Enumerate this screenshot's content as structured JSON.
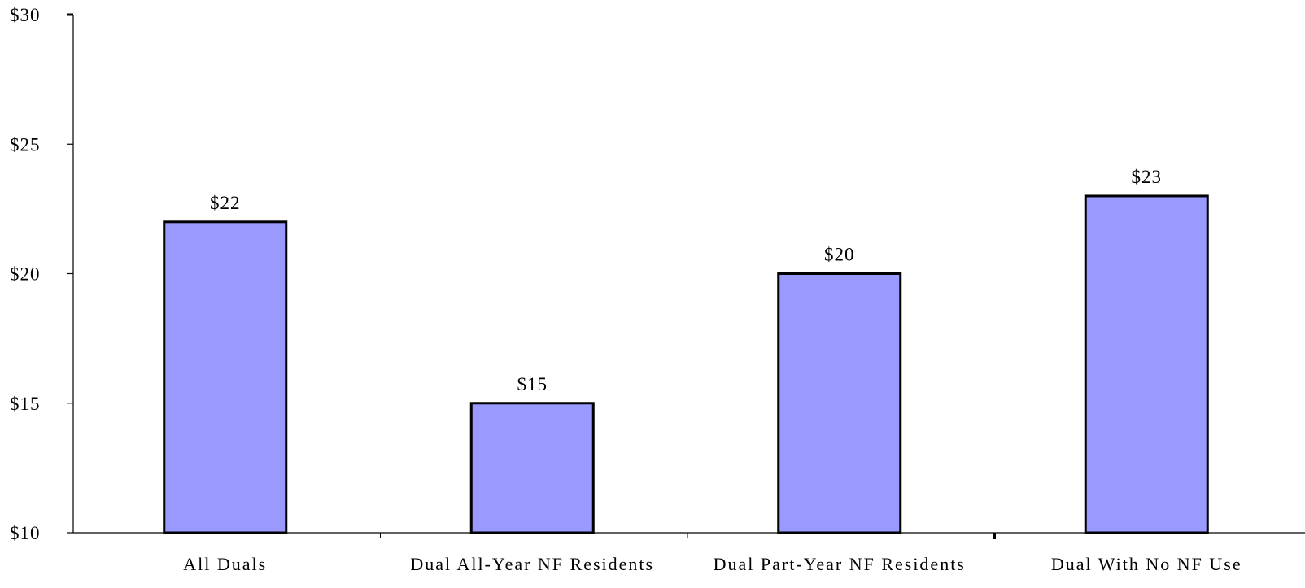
{
  "chart_data": {
    "type": "bar",
    "title": "",
    "xlabel": "",
    "ylabel": "",
    "categories": [
      "All Duals",
      "Dual All-Year NF Residents",
      "Dual Part-Year NF Residents",
      "Dual With No NF Use"
    ],
    "values": [
      22,
      15,
      20,
      23
    ],
    "data_labels": [
      "$22",
      "$15",
      "$20",
      "$23"
    ],
    "ylim": [
      10,
      30
    ],
    "y_ticks": [
      10,
      15,
      20,
      25,
      30
    ],
    "y_tick_labels": [
      "$10",
      "$15",
      "$20",
      "$25",
      "$30"
    ],
    "grid": false,
    "legend": "none",
    "bar_color": "#9999ff",
    "bar_edge_color": "#000000"
  }
}
